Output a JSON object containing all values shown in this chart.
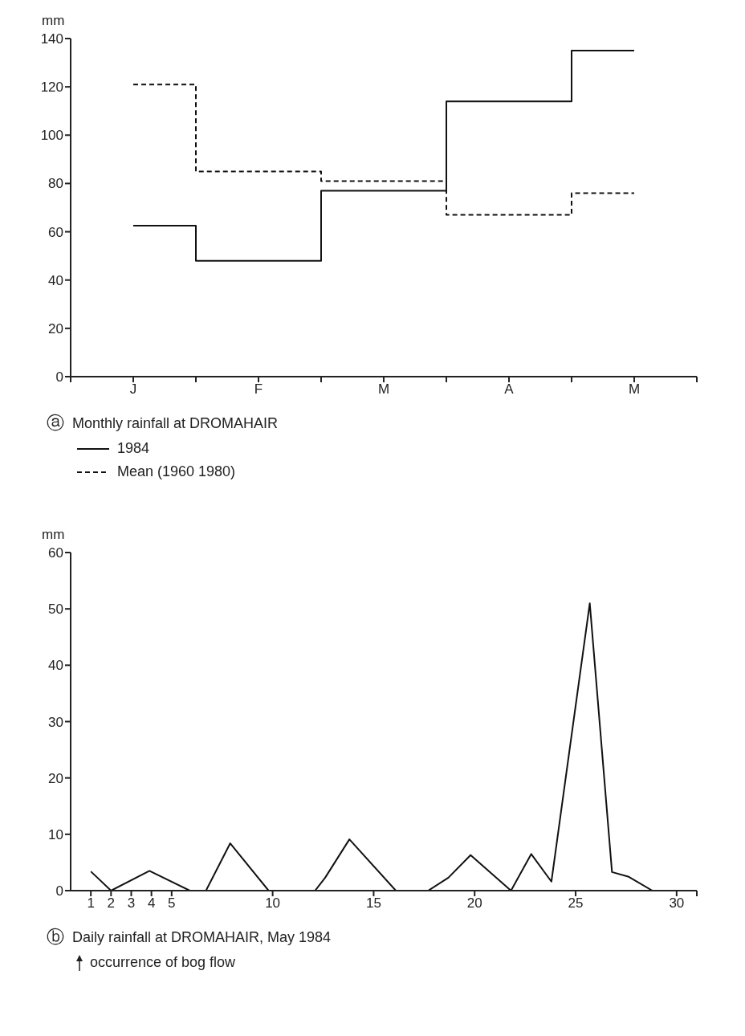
{
  "chart_data": [
    {
      "type": "step",
      "title": "Monthly rainfall at DROMAHAIR",
      "ylabel": "mm",
      "categories": [
        "J",
        "F",
        "M",
        "A",
        "M"
      ],
      "series": [
        {
          "name": "1984",
          "color": "#111111",
          "line_style": "solid",
          "values": [
            62.5,
            48,
            77,
            114,
            135
          ]
        },
        {
          "name": "Mean (1960 1980)",
          "color": "#111111",
          "line_style": "dashed",
          "values": [
            121,
            85,
            81,
            67,
            76
          ]
        }
      ],
      "ylim": [
        0,
        140
      ],
      "yticks": [
        0,
        20,
        40,
        60,
        80,
        100,
        120,
        140
      ],
      "grid": false,
      "legend": "bottom",
      "marker": "none",
      "annotations": [
        "ⓐ"
      ]
    },
    {
      "type": "line",
      "title": "Daily rainfall at DROMAHAIR, May 1984",
      "ylabel": "mm",
      "x": [
        1,
        2,
        3.9,
        5.9,
        6.7,
        7.9,
        9.8,
        12.1,
        12.6,
        13.8,
        16.1,
        17.7,
        18.7,
        19.8,
        21.8,
        22.8,
        23.8,
        25.7,
        26.8,
        27.6,
        28.8
      ],
      "series": [
        {
          "color": "#111111",
          "line_style": "solid",
          "values": [
            3.4,
            0,
            3.5,
            0,
            0,
            8.4,
            0,
            0,
            2.3,
            9.1,
            0,
            0,
            2.3,
            6.3,
            0,
            6.5,
            1.6,
            51,
            3.3,
            2.5,
            0
          ]
        }
      ],
      "xlim": [
        0,
        31
      ],
      "xticks": [
        1,
        2,
        3,
        4,
        5,
        10,
        15,
        20,
        25,
        30,
        {
          "value": 31,
          "label": null
        }
      ],
      "ylim": [
        0,
        60
      ],
      "yticks": [
        0,
        10,
        20,
        30,
        40,
        50,
        60
      ],
      "grid": false,
      "legend": false,
      "marker": "none",
      "annotations": [
        "ⓑ",
        "occurrence of bog flow"
      ]
    }
  ]
}
